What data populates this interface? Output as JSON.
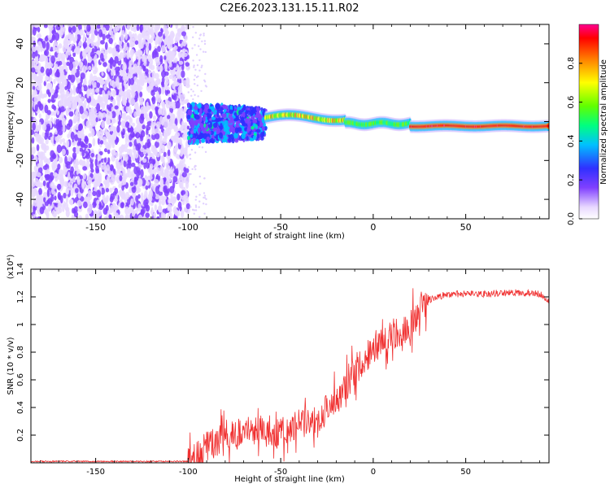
{
  "figure": {
    "title": "C2E6.2023.131.15.11.R02"
  },
  "colors": {
    "axis": "#000000",
    "snr_line": "#f03030",
    "background": "#ffffff"
  },
  "chart_data": [
    {
      "type": "heatmap",
      "name": "spectrogram",
      "xlabel": "Height of straight line (km)",
      "ylabel": "Frequency (Hz)",
      "xlim": [
        -185,
        95
      ],
      "ylim": [
        -50,
        50
      ],
      "xticks": [
        -150,
        -100,
        -50,
        0,
        50
      ],
      "yticks": [
        -40,
        -20,
        0,
        20,
        40
      ],
      "colorbar": {
        "label": "Normalized spectral amplitude",
        "range": [
          0.0,
          1.0
        ],
        "ticks": [
          0.0,
          0.2,
          0.4,
          0.6,
          0.8
        ],
        "colors": [
          "#ffffff",
          "#e8d8ff",
          "#8040ff",
          "#3030ff",
          "#00c0ff",
          "#00ff80",
          "#60ff00",
          "#ffff00",
          "#ff8000",
          "#ff0000",
          "#ff0090"
        ]
      },
      "regions": [
        {
          "description": "noise",
          "x_range": [
            -185,
            -100
          ],
          "freq_range": [
            -50,
            50
          ]
        },
        {
          "description": "transition",
          "x_range": [
            -100,
            -58
          ],
          "freq_range": [
            -12,
            12
          ]
        },
        {
          "description": "signal",
          "x_range": [
            -58,
            95
          ],
          "freq_center": [
            2,
            -2
          ],
          "amplitude": [
            0.5,
            1.0
          ]
        }
      ]
    },
    {
      "type": "line",
      "name": "snr",
      "xlabel": "Height of straight line (km)",
      "ylabel": "SNR (10 * v/v)",
      "scale_label": "(x10⁴)",
      "xlim": [
        -185,
        95
      ],
      "ylim": [
        0.0,
        1.4
      ],
      "xticks": [
        -150,
        -100,
        -50,
        0,
        50
      ],
      "yticks": [
        0.2,
        0.4,
        0.6,
        0.8,
        1.0,
        1.2,
        1.4
      ],
      "series": [
        {
          "name": "SNR",
          "x": [
            -185,
            -150,
            -120,
            -100,
            -95,
            -90,
            -85,
            -80,
            -75,
            -70,
            -65,
            -60,
            -55,
            -50,
            -45,
            -40,
            -35,
            -30,
            -25,
            -20,
            -15,
            -10,
            -5,
            0,
            5,
            10,
            15,
            20,
            25,
            30,
            35,
            40,
            50,
            60,
            70,
            80,
            90,
            95
          ],
          "values": [
            0.01,
            0.01,
            0.01,
            0.01,
            0.05,
            0.12,
            0.15,
            0.18,
            0.2,
            0.22,
            0.25,
            0.24,
            0.2,
            0.22,
            0.25,
            0.28,
            0.3,
            0.32,
            0.4,
            0.45,
            0.55,
            0.65,
            0.75,
            0.82,
            0.88,
            0.92,
            0.95,
            1.0,
            1.12,
            1.18,
            1.2,
            1.22,
            1.22,
            1.22,
            1.23,
            1.23,
            1.22,
            1.18
          ]
        }
      ]
    }
  ]
}
